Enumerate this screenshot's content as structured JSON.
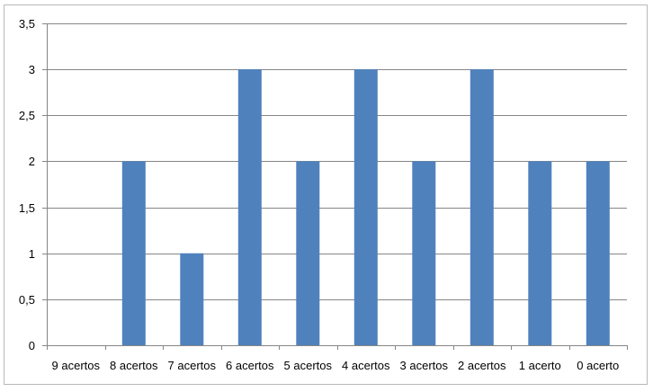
{
  "chart_data": {
    "type": "bar",
    "categories": [
      "9 acertos",
      "8 acertos",
      "7 acertos",
      "6 acertos",
      "5 acertos",
      "4 acertos",
      "3 acertos",
      "2 acertos",
      "1 acerto",
      "0 acerto"
    ],
    "values": [
      0,
      2,
      1,
      3,
      2,
      3,
      2,
      3,
      2,
      2
    ],
    "yticks": [
      "0",
      "0,5",
      "1",
      "1,5",
      "2",
      "2,5",
      "3",
      "3,5"
    ],
    "ylim": [
      0,
      3.5
    ],
    "title": "",
    "xlabel": "",
    "ylabel": "",
    "grid": true,
    "legend": "none",
    "bar_color": "#4f81bd",
    "grid_color": "#868686"
  }
}
